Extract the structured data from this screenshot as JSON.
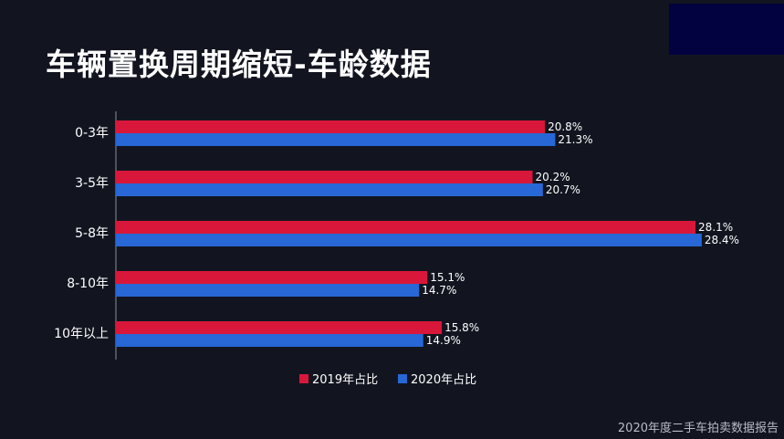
{
  "slide": {
    "title": "车辆置换周期缩短-车龄数据",
    "footer": "2020年度二手车拍卖数据报告"
  },
  "colors": {
    "background": "#121520",
    "series_2019": "#d9173a",
    "series_2020": "#2767d6",
    "corner_block": "#020240"
  },
  "chart_data": {
    "type": "bar",
    "orientation": "horizontal",
    "categories": [
      "0-3年",
      "3-5年",
      "5-8年",
      "8-10年",
      "10年以上"
    ],
    "series": [
      {
        "name": "2019年占比",
        "color": "#d9173a",
        "values": [
          20.8,
          20.2,
          28.1,
          15.1,
          15.8
        ],
        "labels": [
          "20.8%",
          "20.2%",
          "28.1%",
          "15.1%",
          "15.8%"
        ]
      },
      {
        "name": "2020年占比",
        "color": "#2767d6",
        "values": [
          21.3,
          20.7,
          28.4,
          14.7,
          14.9
        ],
        "labels": [
          "21.3%",
          "20.7%",
          "28.4%",
          "14.7%",
          "14.9%"
        ]
      }
    ],
    "unit": "%",
    "xlim": [
      0,
      30
    ],
    "grid": false,
    "legend_position": "bottom"
  }
}
